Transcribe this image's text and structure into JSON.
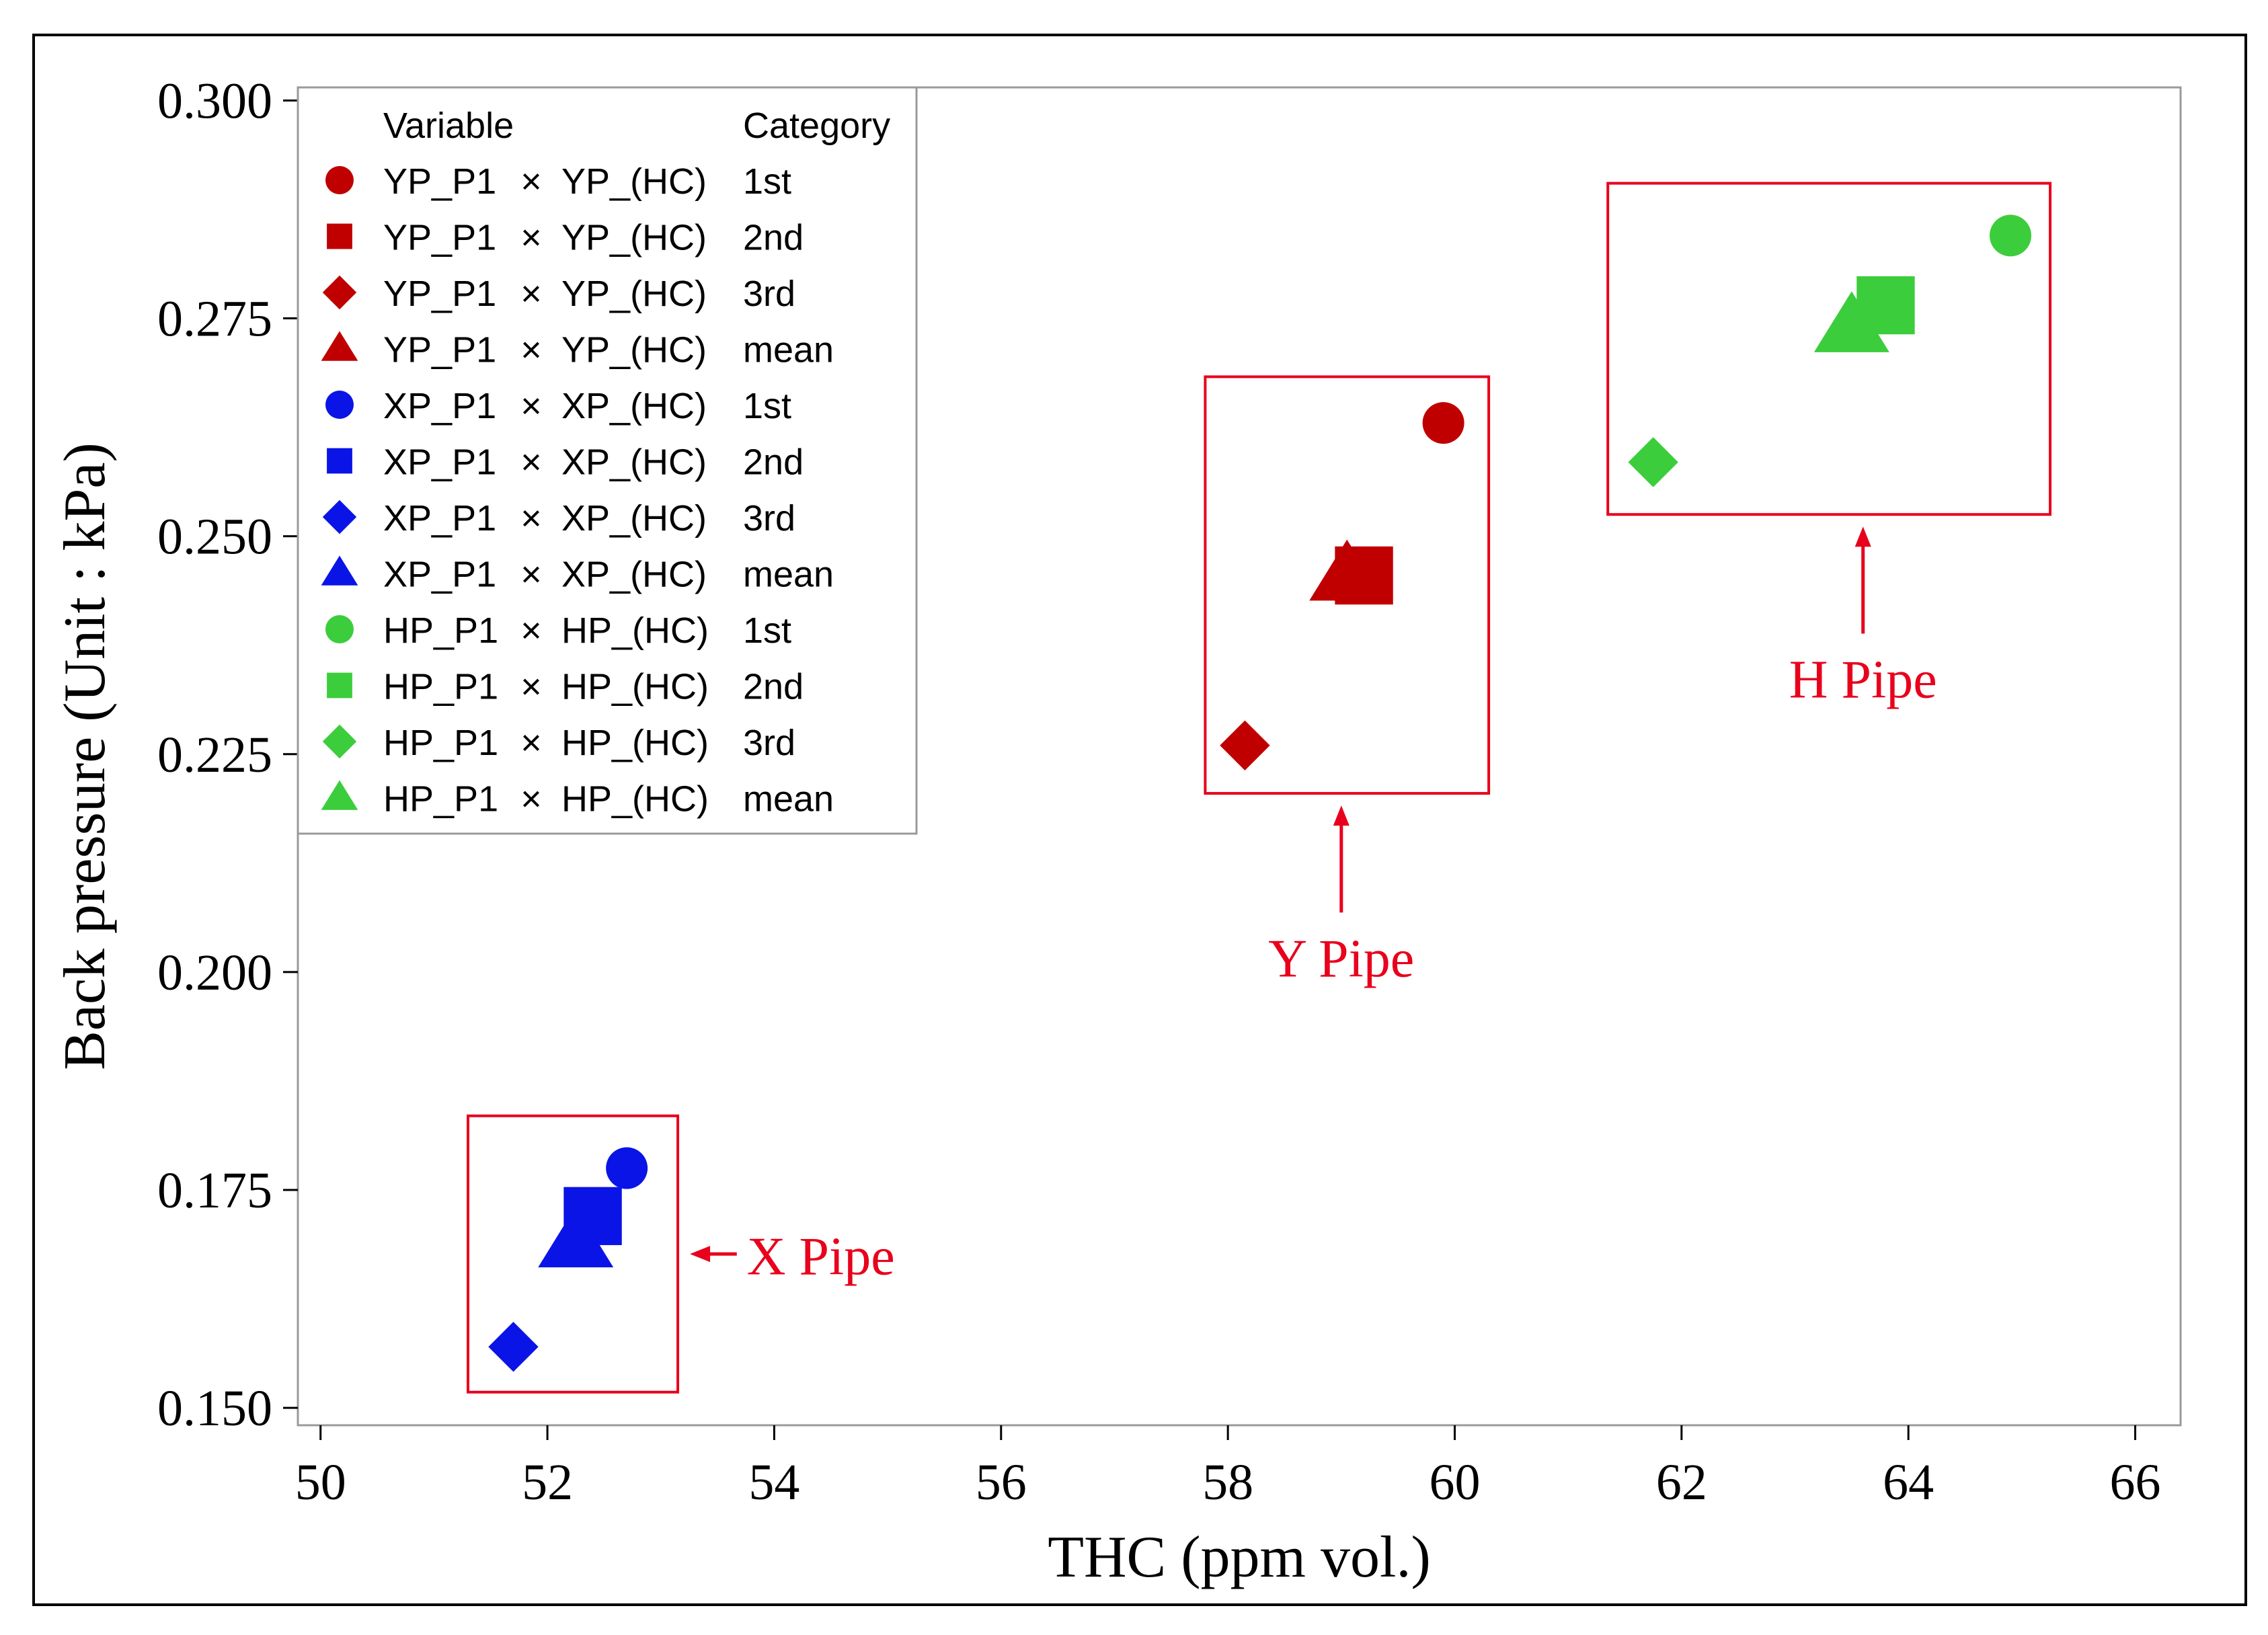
{
  "chart_data": {
    "type": "scatter",
    "title": "",
    "xlabel": "THC (ppm vol.)",
    "ylabel": "Back pressure (Unit : kPa)",
    "xlim": [
      49.8,
      66.4
    ],
    "ylim": [
      0.148,
      0.3015
    ],
    "xticks": [
      50,
      52,
      54,
      56,
      58,
      60,
      62,
      64,
      66
    ],
    "xtick_labels": [
      "50",
      "52",
      "54",
      "56",
      "58",
      "60",
      "62",
      "64",
      "66"
    ],
    "yticks": [
      0.15,
      0.175,
      0.2,
      0.225,
      0.25,
      0.275,
      0.3
    ],
    "ytick_labels": [
      "0.150",
      "0.175",
      "0.200",
      "0.225",
      "0.250",
      "0.275",
      "0.300"
    ],
    "grid": false,
    "legend": {
      "position": "top-left",
      "header_variable": "Variable",
      "header_category": "Category"
    },
    "series": [
      {
        "name": "YP_P1",
        "times": "×",
        "var2": "YP_(HC)",
        "category": "1st",
        "color": "#c00000",
        "marker": "circle",
        "x": 59.9,
        "y": 0.263
      },
      {
        "name": "YP_P1",
        "times": "×",
        "var2": "YP_(HC)",
        "category": "2nd",
        "color": "#c00000",
        "marker": "square",
        "x": 59.2,
        "y": 0.2455
      },
      {
        "name": "YP_P1",
        "times": "×",
        "var2": "YP_(HC)",
        "category": "3rd",
        "color": "#c00000",
        "marker": "diamond",
        "x": 58.15,
        "y": 0.226
      },
      {
        "name": "YP_P1",
        "times": "×",
        "var2": "YP_(HC)",
        "category": "mean",
        "color": "#c00000",
        "marker": "triangle",
        "x": 59.05,
        "y": 0.2455
      },
      {
        "name": "XP_P1",
        "times": "×",
        "var2": "XP_(HC)",
        "category": "1st",
        "color": "#0a14e6",
        "marker": "circle",
        "x": 52.7,
        "y": 0.1775
      },
      {
        "name": "XP_P1",
        "times": "×",
        "var2": "XP_(HC)",
        "category": "2nd",
        "color": "#0a14e6",
        "marker": "square",
        "x": 52.4,
        "y": 0.172
      },
      {
        "name": "XP_P1",
        "times": "×",
        "var2": "XP_(HC)",
        "category": "3rd",
        "color": "#0a14e6",
        "marker": "diamond",
        "x": 51.7,
        "y": 0.157
      },
      {
        "name": "XP_P1",
        "times": "×",
        "var2": "XP_(HC)",
        "category": "mean",
        "color": "#0a14e6",
        "marker": "triangle",
        "x": 52.25,
        "y": 0.169
      },
      {
        "name": "HP_P1",
        "times": "×",
        "var2": "HP_(HC)",
        "category": "1st",
        "color": "#3ccd3c",
        "marker": "circle",
        "x": 64.9,
        "y": 0.2845
      },
      {
        "name": "HP_P1",
        "times": "×",
        "var2": "HP_(HC)",
        "category": "2nd",
        "color": "#3ccd3c",
        "marker": "square",
        "x": 63.8,
        "y": 0.2765
      },
      {
        "name": "HP_P1",
        "times": "×",
        "var2": "HP_(HC)",
        "category": "3rd",
        "color": "#3ccd3c",
        "marker": "diamond",
        "x": 61.75,
        "y": 0.2585
      },
      {
        "name": "HP_P1",
        "times": "×",
        "var2": "HP_(HC)",
        "category": "mean",
        "color": "#3ccd3c",
        "marker": "triangle",
        "x": 63.5,
        "y": 0.274
      }
    ],
    "annotations": [
      {
        "text": "X Pipe",
        "color": "#e8001c",
        "box_x": [
          51.3,
          53.15
        ],
        "box_y": [
          0.1518,
          0.1835
        ],
        "label_x": 54.5,
        "label_y": 0.1675,
        "arrow": "left"
      },
      {
        "text": "Y Pipe",
        "color": "#e8001c",
        "box_x": [
          57.8,
          60.3
        ],
        "box_y": [
          0.2205,
          0.2683
        ],
        "label_x": 59.0,
        "label_y": 0.1995,
        "arrow": "up"
      },
      {
        "text": "H Pipe",
        "color": "#e8001c",
        "box_x": [
          61.35,
          65.25
        ],
        "box_y": [
          0.2525,
          0.2905
        ],
        "label_x": 63.6,
        "label_y": 0.2315,
        "arrow": "up"
      }
    ]
  }
}
